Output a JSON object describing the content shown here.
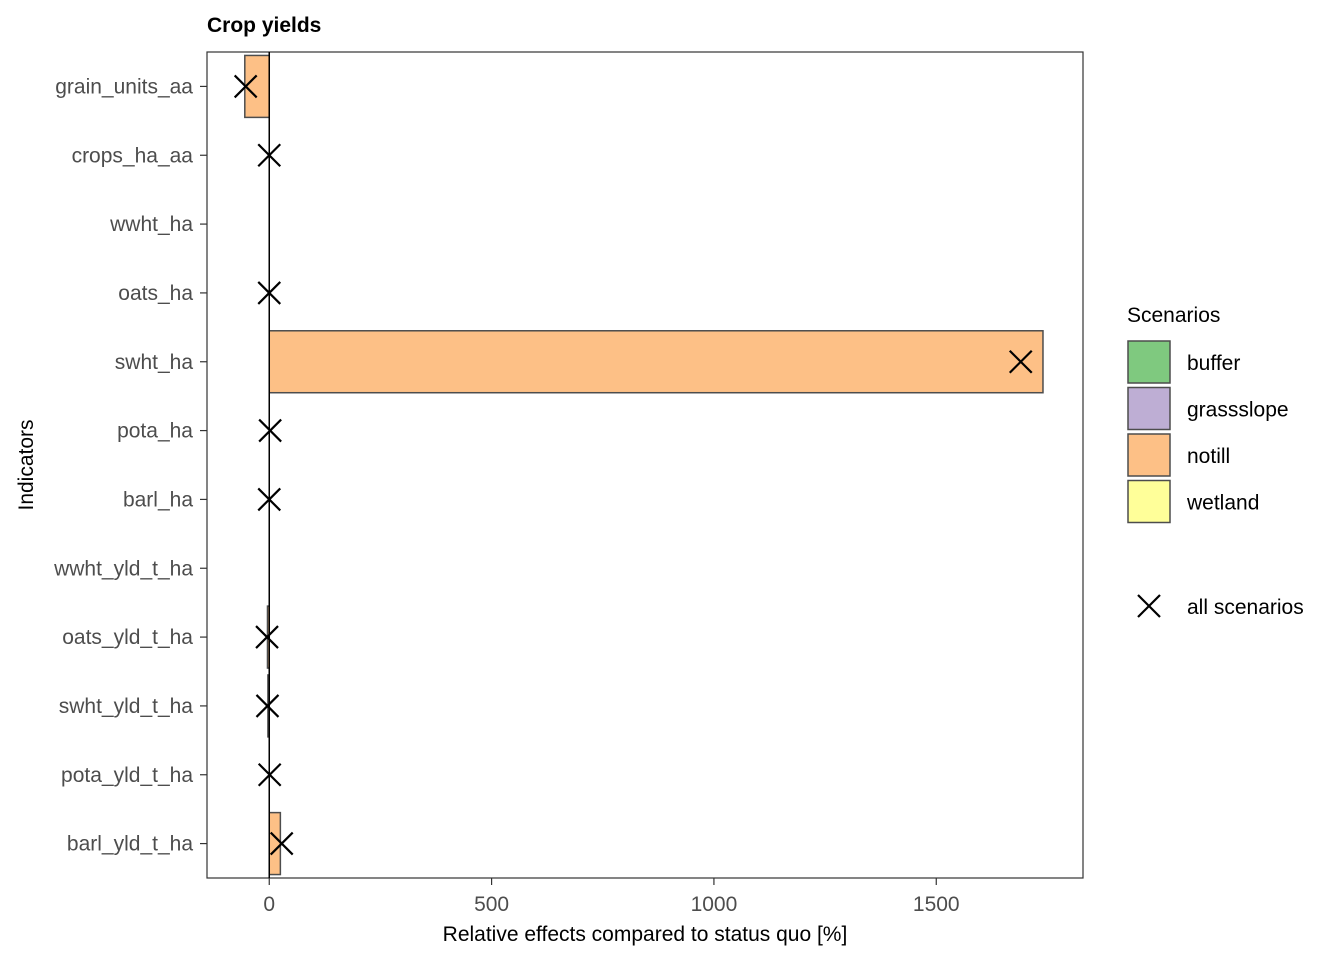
{
  "chart_data": {
    "type": "bar",
    "orientation": "horizontal",
    "title": "Crop yields",
    "xlabel": "Relative effects compared to status quo [%]",
    "ylabel": "Indicators",
    "xlim": [
      -140,
      1830
    ],
    "xticks": [
      0,
      500,
      1000,
      1500
    ],
    "grid": false,
    "categories": [
      "grain_units_aa",
      "crops_ha_aa",
      "wwht_ha",
      "oats_ha",
      "swht_ha",
      "pota_ha",
      "barl_ha",
      "wwht_yld_t_ha",
      "oats_yld_t_ha",
      "swht_yld_t_ha",
      "pota_yld_t_ha",
      "barl_yld_t_ha"
    ],
    "series": [
      {
        "name": "buffer",
        "color": "#7fc97f",
        "values": [
          0,
          0,
          0,
          0,
          0,
          0,
          0,
          0,
          0,
          0,
          0,
          0
        ]
      },
      {
        "name": "grassslope",
        "color": "#beaed4",
        "values": [
          0,
          0,
          0,
          0,
          0,
          0,
          0,
          0,
          0,
          0,
          0,
          0
        ]
      },
      {
        "name": "notill",
        "color": "#fdc086",
        "values": [
          -55,
          0,
          0,
          0,
          1740,
          0,
          0,
          0,
          -4,
          -3,
          0,
          25
        ]
      },
      {
        "name": "wetland",
        "color": "#ffff99",
        "values": [
          0,
          0,
          0,
          0,
          0,
          0,
          0,
          0,
          0,
          0,
          0,
          0
        ]
      }
    ],
    "all_scenarios": {
      "name": "all scenarios",
      "marker": "x",
      "values": [
        -53,
        0,
        null,
        0,
        1690,
        2,
        0,
        null,
        -5,
        -4,
        1,
        28
      ]
    },
    "legend": {
      "title": "Scenarios",
      "placement": "right",
      "items": [
        "buffer",
        "grassslope",
        "notill",
        "wetland"
      ],
      "marker_label": "all scenarios"
    }
  }
}
